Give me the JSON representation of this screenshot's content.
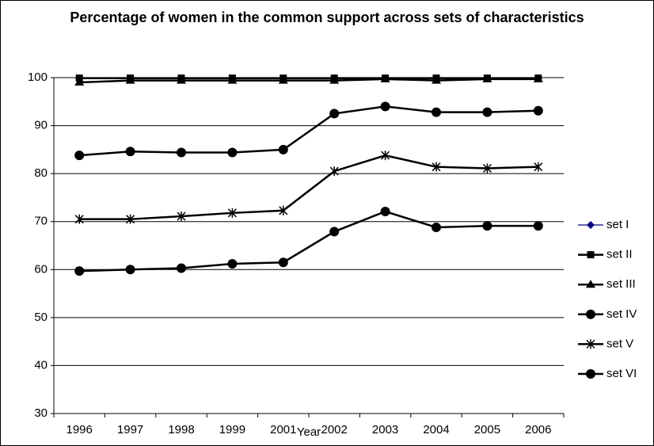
{
  "chart_data": {
    "type": "line",
    "title": "Percentage of women in the common support across sets of characteristics",
    "x_label": "Year",
    "categories": [
      "1996",
      "1997",
      "1998",
      "1999",
      "2001",
      "2002",
      "2003",
      "2004",
      "2005",
      "2006"
    ],
    "ylim": [
      30,
      100
    ],
    "yticks": [
      30,
      40,
      50,
      60,
      70,
      80,
      90,
      100
    ],
    "grid": true,
    "legend": "right",
    "series": [
      {
        "name": "set I",
        "color": "#000080",
        "marker": "diamond",
        "values": [
          99.8,
          99.8,
          99.8,
          99.8,
          99.8,
          99.8,
          99.8,
          99.8,
          99.8,
          99.8
        ]
      },
      {
        "name": "set II",
        "color": "#000000",
        "marker": "square",
        "values": [
          99.9,
          99.9,
          99.9,
          99.9,
          99.9,
          99.9,
          99.9,
          99.9,
          99.9,
          99.9
        ]
      },
      {
        "name": "set III",
        "color": "#000000",
        "marker": "triangle",
        "values": [
          99,
          99.4,
          99.4,
          99.4,
          99.4,
          99.4,
          99.7,
          99.4,
          99.7,
          99.7
        ]
      },
      {
        "name": "set IV",
        "color": "#000000",
        "marker": "circle",
        "values": [
          83.8,
          84.6,
          84.4,
          84.4,
          85,
          92.5,
          94,
          92.8,
          92.8,
          93.1
        ]
      },
      {
        "name": "set V",
        "color": "#000000",
        "marker": "star",
        "values": [
          70.5,
          70.5,
          71.1,
          71.8,
          72.3,
          80.5,
          83.8,
          81.4,
          81.1,
          81.4
        ]
      },
      {
        "name": "set VI",
        "color": "#000000",
        "marker": "circle",
        "values": [
          59.7,
          60,
          60.3,
          61.2,
          61.5,
          67.9,
          72.1,
          68.8,
          69.1,
          69.1
        ]
      }
    ]
  }
}
